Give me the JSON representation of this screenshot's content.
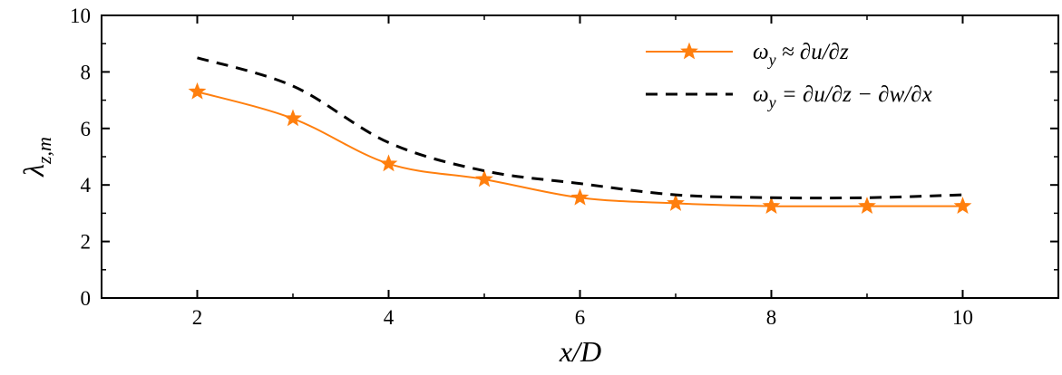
{
  "chart_data": {
    "type": "line",
    "xlabel": "x/D",
    "ylabel": "λz,m",
    "xlim": [
      1,
      11
    ],
    "ylim": [
      0,
      10
    ],
    "xticks": [
      2,
      4,
      6,
      8,
      10
    ],
    "yticks": [
      0,
      2,
      4,
      6,
      8,
      10
    ],
    "grid": false,
    "legend_position": "top-right",
    "series": [
      {
        "name": "ωy ≈ ∂u/∂z",
        "style": "solid-star-markers",
        "color": "#ff7f0e",
        "x": [
          2,
          3,
          4,
          5,
          6,
          7,
          8,
          9,
          10
        ],
        "values": [
          7.3,
          6.35,
          4.75,
          4.2,
          3.55,
          3.35,
          3.25,
          3.25,
          3.25
        ]
      },
      {
        "name": "ωy = ∂u/∂z − ∂w/∂x",
        "style": "dashed",
        "color": "#000000",
        "x": [
          2,
          3,
          4,
          5,
          6,
          7,
          8,
          9,
          10
        ],
        "values": [
          8.5,
          7.5,
          5.5,
          4.5,
          4.05,
          3.65,
          3.55,
          3.55,
          3.65
        ]
      }
    ]
  }
}
